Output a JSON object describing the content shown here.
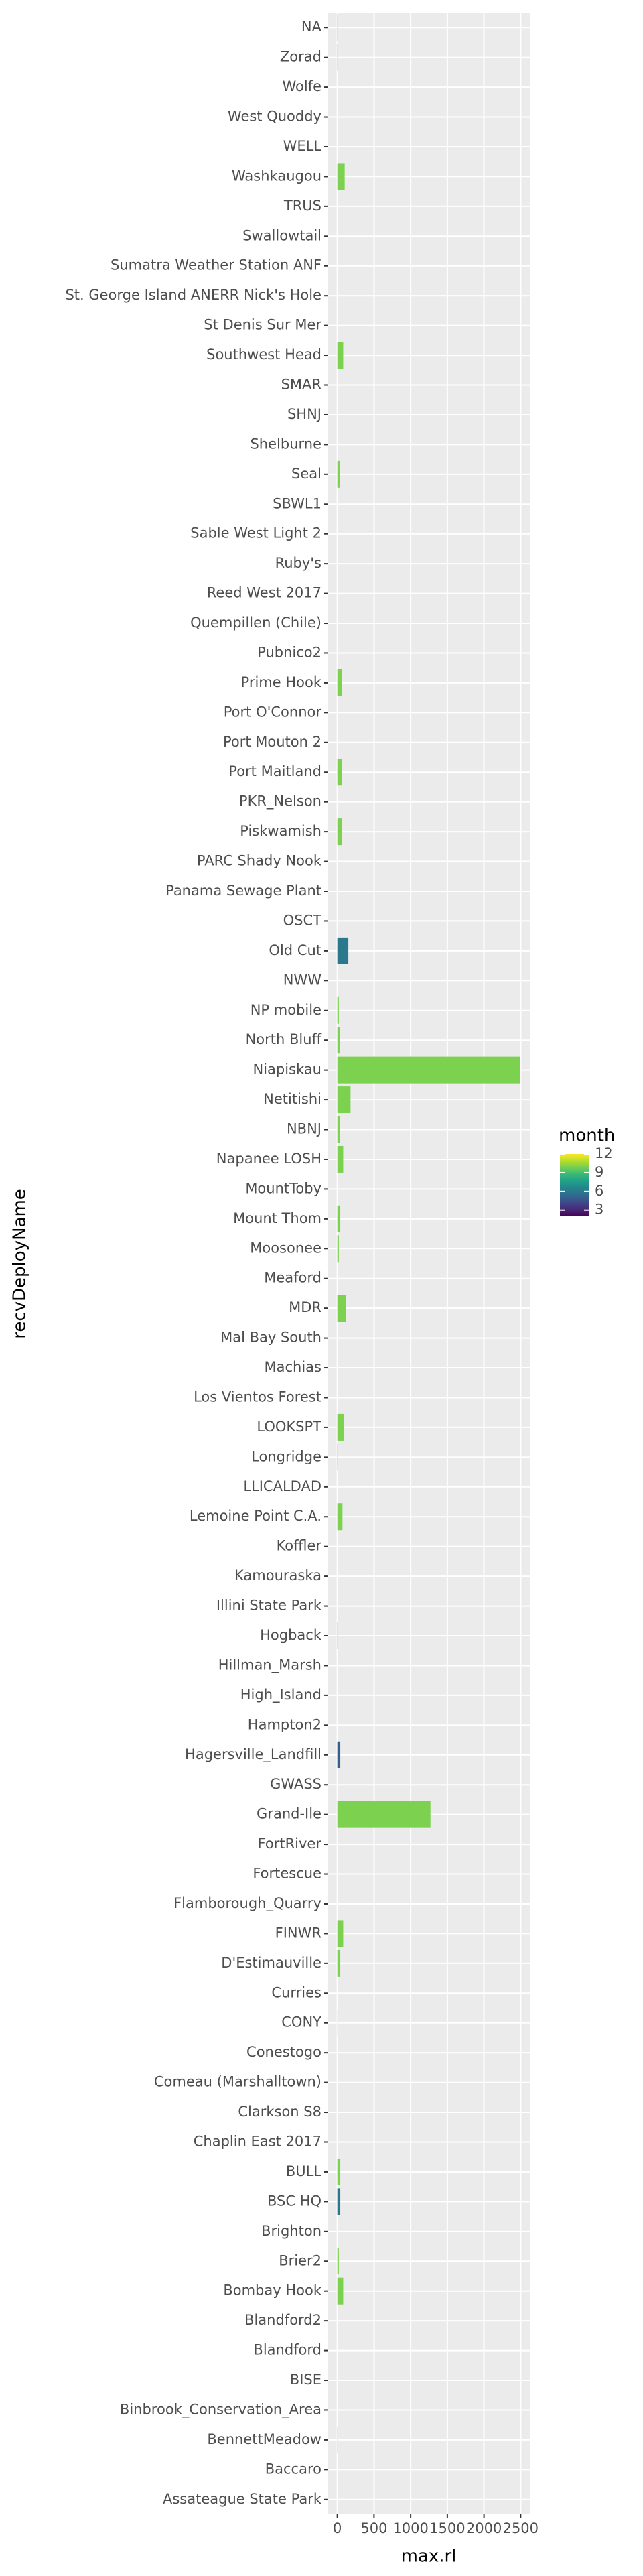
{
  "chart_data": {
    "type": "barh",
    "xlabel": "max.rl",
    "ylabel": "recvDeployName",
    "categories": [
      "NA",
      "Zorad",
      "Wolfe",
      "West Quoddy",
      "WELL",
      "Washkaugou",
      "TRUS",
      "Swallowtail",
      "Sumatra Weather Station ANF",
      "St. George Island ANERR Nick's Hole",
      "St Denis Sur Mer",
      "Southwest Head",
      "SMAR",
      "SHNJ",
      "Shelburne",
      "Seal",
      "SBWL1",
      "Sable West Light 2",
      "Ruby's",
      "Reed West 2017",
      "Quempillen (Chile)",
      "Pubnico2",
      "Prime Hook",
      "Port O'Connor",
      "Port Mouton 2",
      "Port Maitland",
      "PKR_Nelson",
      "Piskwamish",
      "PARC Shady Nook",
      "Panama Sewage Plant",
      "OSCT",
      "Old Cut",
      "NWW",
      "NP mobile",
      "North Bluff",
      "Niapiskau",
      "Netitishi",
      "NBNJ",
      "Napanee LOSH",
      "MountToby",
      "Mount Thom",
      "Moosonee",
      "Meaford",
      "MDR",
      "Mal Bay South",
      "Machias",
      "Los Vientos Forest",
      "LOOKSPT",
      "Longridge",
      "LLICALDAD",
      "Lemoine Point C.A.",
      "Koffler",
      "Kamouraska",
      "Illini State Park",
      "Hogback",
      "Hillman_Marsh",
      "High_Island",
      "Hampton2",
      "Hagersville_Landfill",
      "GWASS",
      "Grand-Ile",
      "FortRiver",
      "Fortescue",
      "Flamborough_Quarry",
      "FINWR",
      "D'Estimauville",
      "Curries",
      "CONY",
      "Conestogo",
      "Comeau (Marshalltown)",
      "Clarkson S8",
      "Chaplin East 2017",
      "BULL",
      "BSC HQ",
      "Brighton",
      "Brier2",
      "Bombay Hook",
      "Blandford2",
      "Blandford",
      "BISE",
      "Binbrook_Conservation_Area",
      "BennettMeadow",
      "Baccaro",
      "Assateague State Park"
    ],
    "values": [
      5,
      5,
      0,
      0,
      0,
      100,
      0,
      0,
      0,
      0,
      0,
      80,
      0,
      0,
      0,
      30,
      0,
      0,
      0,
      0,
      0,
      0,
      60,
      0,
      0,
      60,
      0,
      60,
      0,
      0,
      0,
      150,
      0,
      20,
      30,
      2490,
      180,
      30,
      80,
      0,
      40,
      20,
      0,
      120,
      0,
      0,
      0,
      90,
      10,
      0,
      70,
      0,
      0,
      0,
      5,
      0,
      0,
      0,
      40,
      0,
      1270,
      0,
      0,
      0,
      80,
      40,
      0,
      10,
      0,
      0,
      0,
      0,
      40,
      40,
      0,
      20,
      80,
      0,
      0,
      0,
      0,
      10,
      0,
      0
    ],
    "month": [
      10,
      10,
      null,
      null,
      null,
      10,
      null,
      null,
      null,
      null,
      null,
      10,
      null,
      null,
      null,
      10,
      null,
      null,
      null,
      null,
      null,
      null,
      10,
      null,
      null,
      10,
      null,
      10,
      null,
      null,
      null,
      6,
      null,
      10,
      10,
      10,
      10,
      10,
      10,
      null,
      10,
      10,
      null,
      10,
      null,
      null,
      null,
      10,
      10,
      null,
      10,
      null,
      null,
      null,
      10,
      null,
      null,
      null,
      5,
      null,
      10,
      null,
      null,
      null,
      10,
      10,
      null,
      12,
      null,
      null,
      null,
      null,
      10,
      6,
      null,
      10,
      10,
      null,
      null,
      null,
      null,
      11,
      null,
      null
    ],
    "xlim": [
      -125,
      2625
    ],
    "xticks": [
      0,
      500,
      1000,
      1500,
      2000,
      2500
    ],
    "grid": true,
    "colorbar": {
      "title": "month",
      "lim": [
        2,
        12
      ],
      "ticks": [
        3,
        6,
        9,
        12
      ],
      "colors": [
        "#440154",
        "#482878",
        "#3e4989",
        "#31688e",
        "#26828e",
        "#1f9e89",
        "#35b779",
        "#6ece58",
        "#b5de2b",
        "#fde725"
      ]
    }
  }
}
